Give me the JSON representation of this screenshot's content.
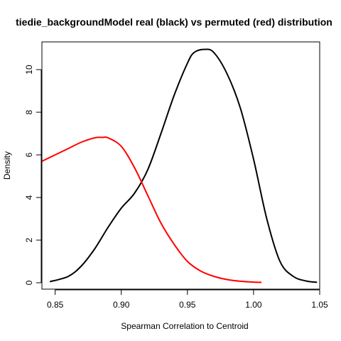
{
  "chart_data": {
    "type": "line",
    "title": "tiedie_backgroundModel  real (black) vs permuted (red) distribution",
    "xlabel": "Spearman Correlation to Centroid",
    "ylabel": "Density",
    "xlim": [
      0.84,
      1.05
    ],
    "ylim": [
      -0.3,
      11.3
    ],
    "xticks": [
      0.85,
      0.9,
      0.95,
      1.0,
      1.05
    ],
    "xtick_labels": [
      "0.85",
      "0.90",
      "0.95",
      "1.00",
      "1.05"
    ],
    "yticks": [
      0,
      2,
      4,
      6,
      8,
      10
    ],
    "ytick_labels": [
      "0",
      "2",
      "4",
      "6",
      "8",
      "10"
    ],
    "grid": false,
    "legend": "none",
    "series": [
      {
        "color": "#000000",
        "x": [
          0.846,
          0.86,
          0.87,
          0.88,
          0.89,
          0.9,
          0.91,
          0.92,
          0.93,
          0.94,
          0.95,
          0.955,
          0.963,
          0.97,
          0.98,
          0.99,
          1.0,
          1.01,
          1.02,
          1.03,
          1.04,
          1.048
        ],
        "y": [
          0.05,
          0.3,
          0.8,
          1.6,
          2.6,
          3.5,
          4.2,
          5.3,
          7.0,
          8.8,
          10.3,
          10.8,
          10.95,
          10.8,
          9.8,
          8.2,
          5.8,
          3.0,
          1.0,
          0.3,
          0.08,
          0.02
        ]
      },
      {
        "color": "#ff0000",
        "x": [
          0.84,
          0.85,
          0.86,
          0.87,
          0.88,
          0.886,
          0.89,
          0.9,
          0.91,
          0.92,
          0.93,
          0.94,
          0.95,
          0.96,
          0.97,
          0.98,
          0.99,
          1.0,
          1.006
        ],
        "y": [
          5.7,
          6.0,
          6.3,
          6.6,
          6.8,
          6.82,
          6.8,
          6.4,
          5.4,
          4.1,
          2.8,
          1.8,
          1.0,
          0.55,
          0.3,
          0.15,
          0.07,
          0.03,
          0.02
        ]
      }
    ]
  }
}
